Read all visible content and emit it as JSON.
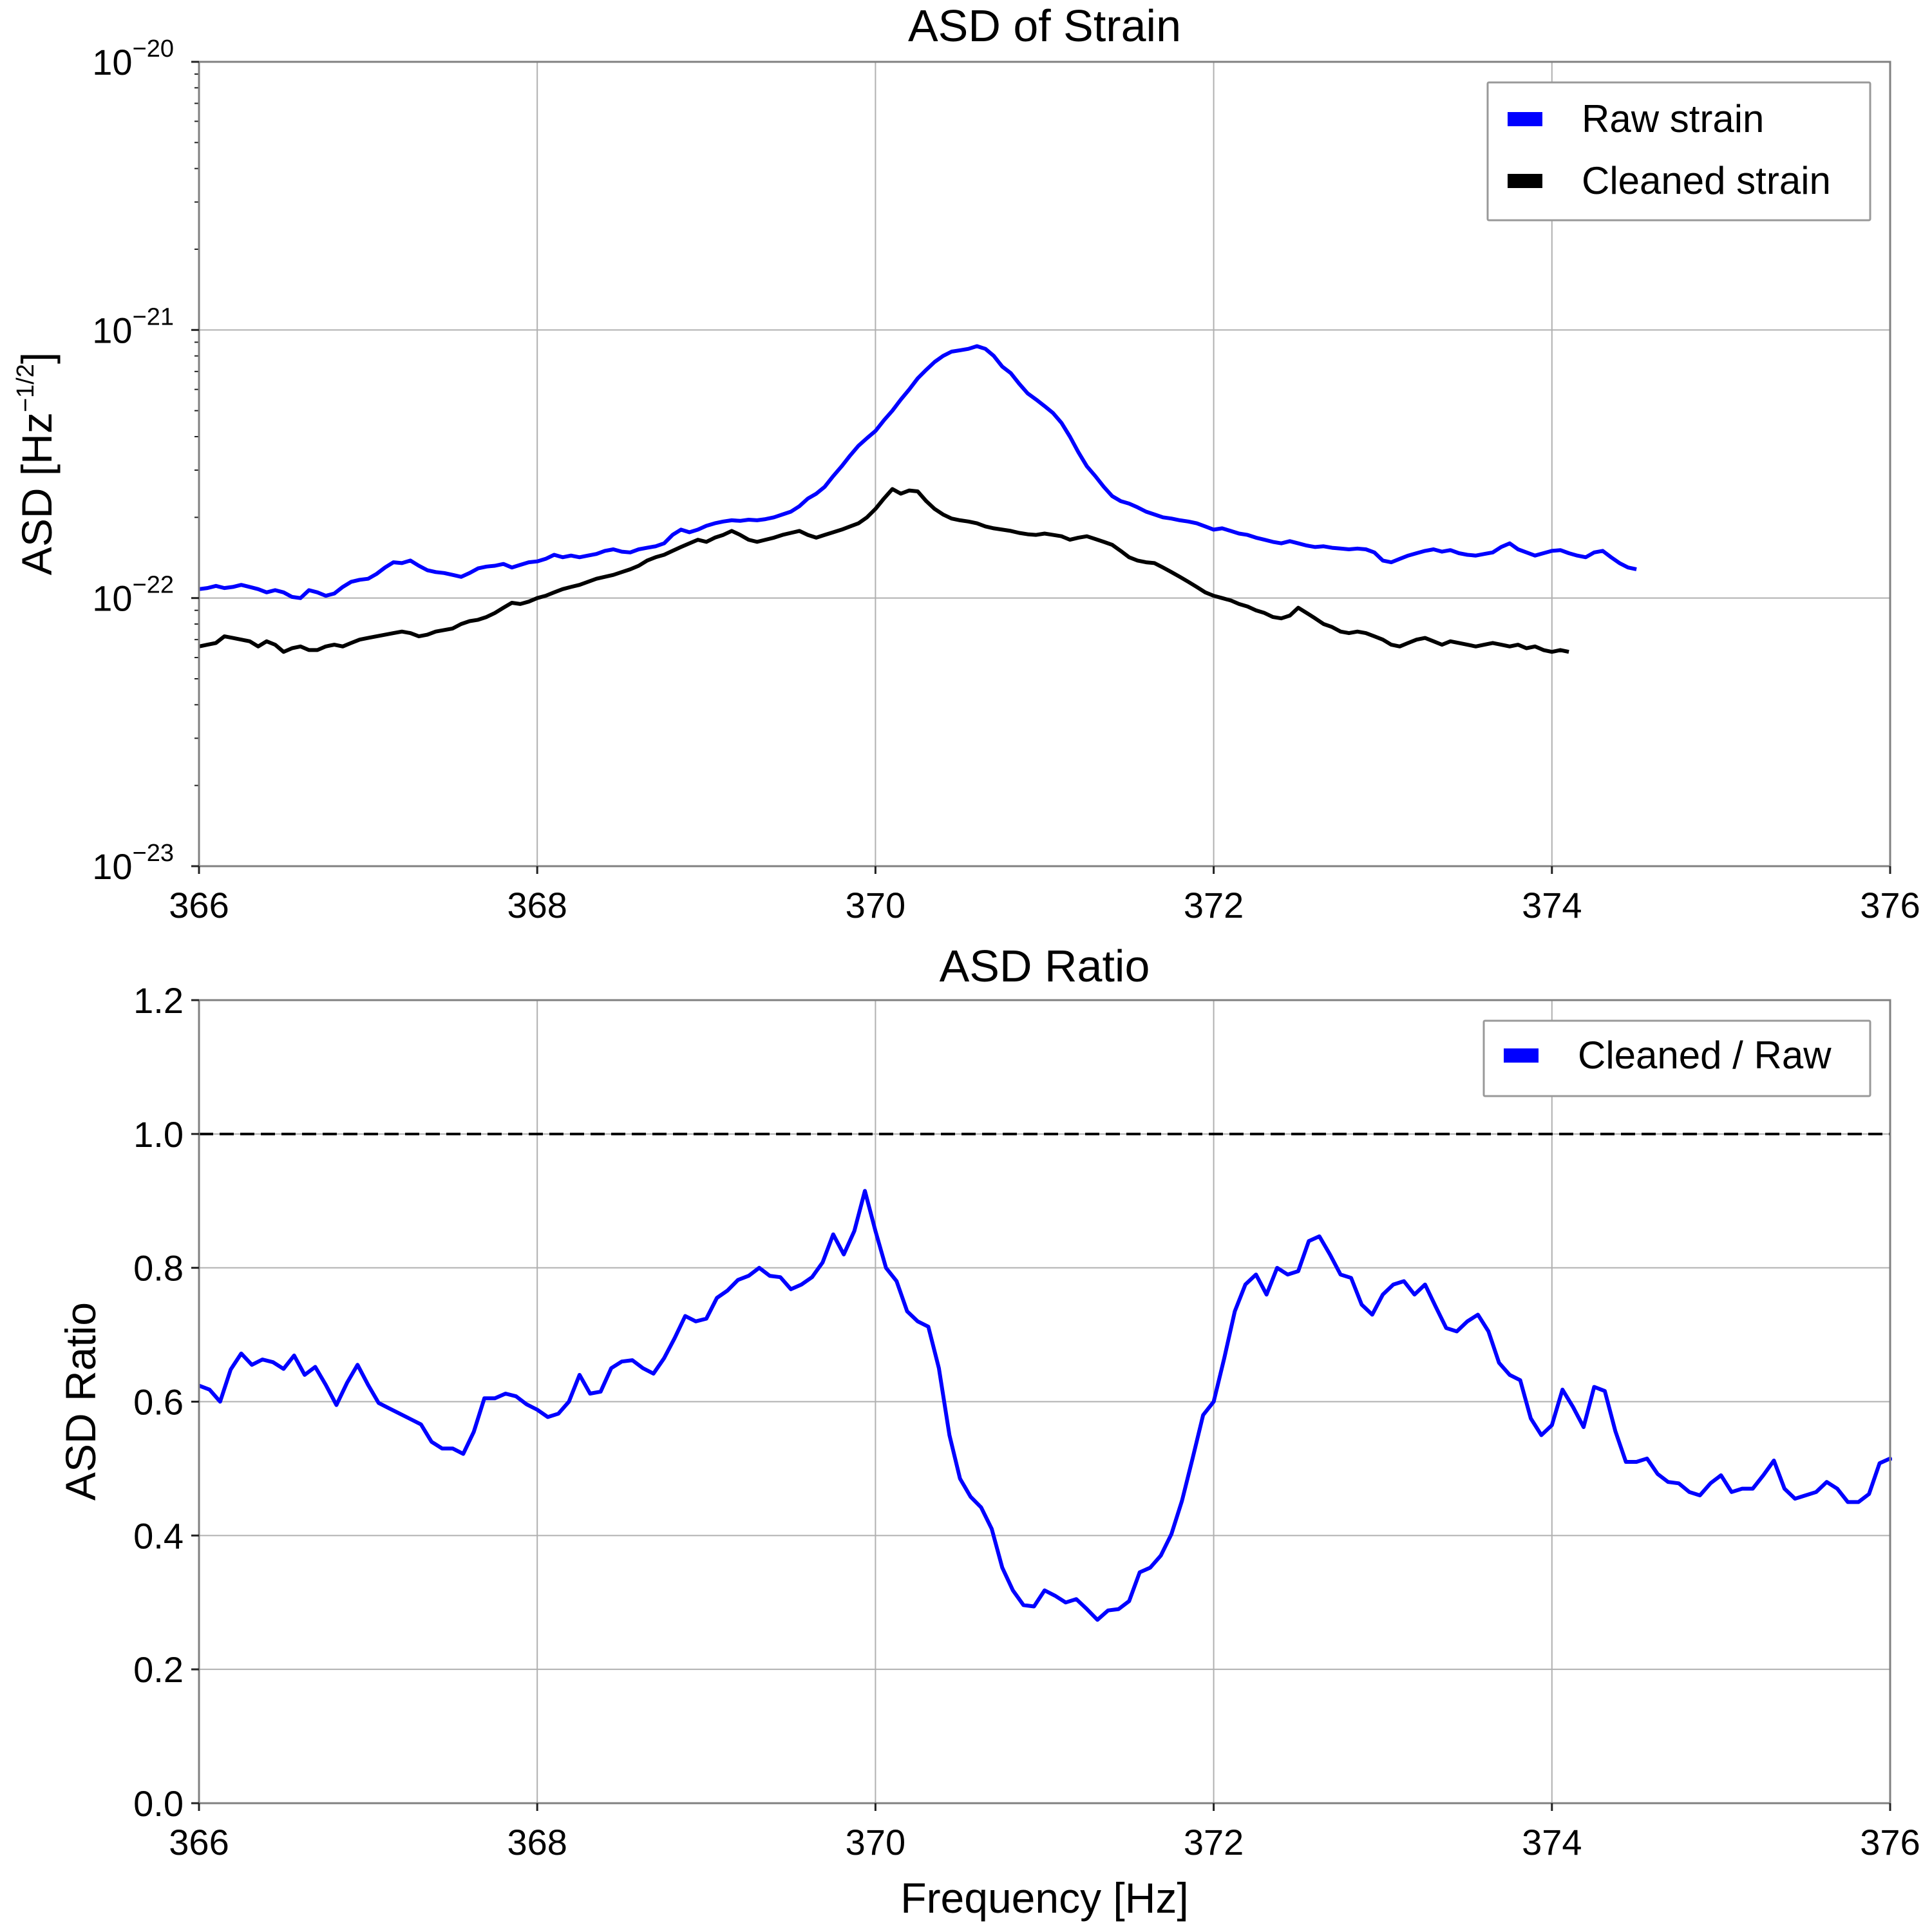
{
  "chart_data": [
    {
      "type": "line",
      "title": "ASD of Strain",
      "xlabel": "",
      "ylabel": "ASD [Hz^-1/2]",
      "ylabel_prefix": "ASD [Hz",
      "ylabel_exp": "−1/2",
      "ylabel_suffix": "]",
      "yscale": "log",
      "xlim": [
        366,
        376
      ],
      "ylim": [
        1e-23,
        1e-20
      ],
      "grid": true,
      "legend_position": "top-right",
      "x_ticks": [
        "366",
        "368",
        "370",
        "372",
        "374",
        "376"
      ],
      "y_ticks": [
        {
          "value": 1e-20,
          "base": "10",
          "exp": "−20"
        },
        {
          "value": 1e-21,
          "base": "10",
          "exp": "−21"
        },
        {
          "value": 1e-22,
          "base": "10",
          "exp": "−22"
        },
        {
          "value": 1e-23,
          "base": "10",
          "exp": "−23"
        }
      ],
      "x_start": 366,
      "x_step": 0.05,
      "series": [
        {
          "name": "Raw strain",
          "color": "#0000ff",
          "values": [
            1.08e-22,
            1.09e-22,
            1.11e-22,
            1.09e-22,
            1.1e-22,
            1.12e-22,
            1.1e-22,
            1.08e-22,
            1.05e-22,
            1.07e-22,
            1.05e-22,
            1.01e-22,
            1e-22,
            1.07e-22,
            1.05e-22,
            1.02e-22,
            1.04e-22,
            1.1e-22,
            1.15e-22,
            1.17e-22,
            1.18e-22,
            1.23e-22,
            1.3e-22,
            1.36e-22,
            1.35e-22,
            1.38e-22,
            1.32e-22,
            1.27e-22,
            1.25e-22,
            1.24e-22,
            1.22e-22,
            1.2e-22,
            1.24e-22,
            1.29e-22,
            1.31e-22,
            1.32e-22,
            1.34e-22,
            1.3e-22,
            1.33e-22,
            1.36e-22,
            1.37e-22,
            1.4e-22,
            1.45e-22,
            1.42e-22,
            1.44e-22,
            1.42e-22,
            1.44e-22,
            1.46e-22,
            1.5e-22,
            1.52e-22,
            1.49e-22,
            1.48e-22,
            1.52e-22,
            1.54e-22,
            1.56e-22,
            1.6e-22,
            1.72e-22,
            1.8e-22,
            1.76e-22,
            1.8e-22,
            1.86e-22,
            1.9e-22,
            1.93e-22,
            1.95e-22,
            1.94e-22,
            1.96e-22,
            1.95e-22,
            1.97e-22,
            2e-22,
            2.05e-22,
            2.1e-22,
            2.2e-22,
            2.35e-22,
            2.45e-22,
            2.6e-22,
            2.85e-22,
            3.1e-22,
            3.4e-22,
            3.7e-22,
            3.95e-22,
            4.2e-22,
            4.6e-22,
            5e-22,
            5.5e-22,
            6e-22,
            6.6e-22,
            7.1e-22,
            7.6e-22,
            8e-22,
            8.3e-22,
            8.4e-22,
            8.5e-22,
            8.7e-22,
            8.5e-22,
            8e-22,
            7.3e-22,
            6.9e-22,
            6.3e-22,
            5.8e-22,
            5.5e-22,
            5.2e-22,
            4.9e-22,
            4.5e-22,
            4e-22,
            3.5e-22,
            3.1e-22,
            2.85e-22,
            2.6e-22,
            2.4e-22,
            2.3e-22,
            2.25e-22,
            2.18e-22,
            2.1e-22,
            2.05e-22,
            2e-22,
            1.98e-22,
            1.95e-22,
            1.93e-22,
            1.9e-22,
            1.85e-22,
            1.8e-22,
            1.82e-22,
            1.78e-22,
            1.74e-22,
            1.72e-22,
            1.68e-22,
            1.65e-22,
            1.62e-22,
            1.6e-22,
            1.63e-22,
            1.6e-22,
            1.57e-22,
            1.55e-22,
            1.56e-22,
            1.54e-22,
            1.53e-22,
            1.52e-22,
            1.53e-22,
            1.52e-22,
            1.48e-22,
            1.38e-22,
            1.36e-22,
            1.4e-22,
            1.44e-22,
            1.47e-22,
            1.5e-22,
            1.52e-22,
            1.49e-22,
            1.51e-22,
            1.47e-22,
            1.45e-22,
            1.44e-22,
            1.46e-22,
            1.48e-22,
            1.55e-22,
            1.6e-22,
            1.52e-22,
            1.48e-22,
            1.44e-22,
            1.47e-22,
            1.5e-22,
            1.51e-22,
            1.47e-22,
            1.44e-22,
            1.42e-22,
            1.48e-22,
            1.5e-22,
            1.42e-22,
            1.35e-22,
            1.3e-22,
            1.28e-22
          ]
        },
        {
          "name": "Cleaned strain",
          "color": "#000000",
          "values": [
            6.6e-23,
            6.7e-23,
            6.8e-23,
            7.2e-23,
            7.1e-23,
            7e-23,
            6.9e-23,
            6.6e-23,
            6.9e-23,
            6.7e-23,
            6.3e-23,
            6.5e-23,
            6.6e-23,
            6.4e-23,
            6.4e-23,
            6.6e-23,
            6.7e-23,
            6.6e-23,
            6.8e-23,
            7e-23,
            7.1e-23,
            7.2e-23,
            7.3e-23,
            7.4e-23,
            7.5e-23,
            7.4e-23,
            7.2e-23,
            7.3e-23,
            7.5e-23,
            7.6e-23,
            7.7e-23,
            8e-23,
            8.2e-23,
            8.3e-23,
            8.5e-23,
            8.8e-23,
            9.2e-23,
            9.6e-23,
            9.5e-23,
            9.7e-23,
            1e-22,
            1.02e-22,
            1.05e-22,
            1.08e-22,
            1.1e-22,
            1.12e-22,
            1.15e-22,
            1.18e-22,
            1.2e-22,
            1.22e-22,
            1.25e-22,
            1.28e-22,
            1.32e-22,
            1.38e-22,
            1.42e-22,
            1.45e-22,
            1.5e-22,
            1.55e-22,
            1.6e-22,
            1.65e-22,
            1.62e-22,
            1.68e-22,
            1.72e-22,
            1.78e-22,
            1.72e-22,
            1.65e-22,
            1.62e-22,
            1.65e-22,
            1.68e-22,
            1.72e-22,
            1.75e-22,
            1.78e-22,
            1.72e-22,
            1.68e-22,
            1.72e-22,
            1.76e-22,
            1.8e-22,
            1.85e-22,
            1.9e-22,
            2e-22,
            2.15e-22,
            2.35e-22,
            2.55e-22,
            2.45e-22,
            2.52e-22,
            2.5e-22,
            2.3e-22,
            2.15e-22,
            2.05e-22,
            1.98e-22,
            1.95e-22,
            1.93e-22,
            1.9e-22,
            1.85e-22,
            1.82e-22,
            1.8e-22,
            1.78e-22,
            1.75e-22,
            1.73e-22,
            1.72e-22,
            1.74e-22,
            1.72e-22,
            1.7e-22,
            1.65e-22,
            1.68e-22,
            1.7e-22,
            1.66e-22,
            1.62e-22,
            1.58e-22,
            1.5e-22,
            1.42e-22,
            1.38e-22,
            1.36e-22,
            1.35e-22,
            1.3e-22,
            1.25e-22,
            1.2e-22,
            1.15e-22,
            1.1e-22,
            1.05e-22,
            1.02e-22,
            1e-22,
            9.8e-23,
            9.5e-23,
            9.3e-23,
            9e-23,
            8.8e-23,
            8.5e-23,
            8.4e-23,
            8.6e-23,
            9.2e-23,
            8.8e-23,
            8.4e-23,
            8e-23,
            7.8e-23,
            7.5e-23,
            7.4e-23,
            7.5e-23,
            7.4e-23,
            7.2e-23,
            7e-23,
            6.7e-23,
            6.6e-23,
            6.8e-23,
            7e-23,
            7.1e-23,
            6.9e-23,
            6.7e-23,
            6.9e-23,
            6.8e-23,
            6.7e-23,
            6.6e-23,
            6.7e-23,
            6.8e-23,
            6.7e-23,
            6.6e-23,
            6.7e-23,
            6.5e-23,
            6.6e-23,
            6.4e-23,
            6.3e-23,
            6.4e-23,
            6.3e-23
          ]
        }
      ]
    },
    {
      "type": "line",
      "title": "ASD Ratio",
      "xlabel": "Frequency [Hz]",
      "ylabel": "ASD Ratio",
      "yscale": "linear",
      "xlim": [
        366,
        376
      ],
      "ylim": [
        0.0,
        1.2
      ],
      "grid": true,
      "legend_position": "top-right",
      "x_ticks": [
        "366",
        "368",
        "370",
        "372",
        "374",
        "376"
      ],
      "y_ticks": [
        "0.0",
        "0.2",
        "0.4",
        "0.6",
        "0.8",
        "1.0",
        "1.2"
      ],
      "reference_line": {
        "y": 1.0,
        "style": "dashed",
        "color": "#000000"
      },
      "x_start": 366,
      "x_step": 0.0625,
      "series": [
        {
          "name": "Cleaned / Raw",
          "color": "#0000ff",
          "values": [
            0.624,
            0.618,
            0.6,
            0.648,
            0.672,
            0.655,
            0.663,
            0.659,
            0.649,
            0.669,
            0.64,
            0.652,
            0.625,
            0.595,
            0.628,
            0.655,
            0.625,
            0.598,
            0.59,
            0.582,
            0.574,
            0.566,
            0.54,
            0.53,
            0.53,
            0.522,
            0.555,
            0.605,
            0.605,
            0.612,
            0.608,
            0.596,
            0.588,
            0.577,
            0.582,
            0.6,
            0.64,
            0.612,
            0.615,
            0.65,
            0.66,
            0.662,
            0.65,
            0.642,
            0.665,
            0.695,
            0.728,
            0.72,
            0.724,
            0.755,
            0.766,
            0.782,
            0.788,
            0.8,
            0.788,
            0.786,
            0.768,
            0.775,
            0.786,
            0.808,
            0.85,
            0.82,
            0.855,
            0.915,
            0.855,
            0.8,
            0.78,
            0.735,
            0.72,
            0.712,
            0.65,
            0.55,
            0.485,
            0.458,
            0.442,
            0.41,
            0.352,
            0.318,
            0.296,
            0.294,
            0.318,
            0.31,
            0.3,
            0.305,
            0.29,
            0.274,
            0.288,
            0.29,
            0.302,
            0.345,
            0.352,
            0.37,
            0.402,
            0.452,
            0.515,
            0.58,
            0.6,
            0.665,
            0.735,
            0.775,
            0.79,
            0.76,
            0.8,
            0.79,
            0.795,
            0.84,
            0.847,
            0.82,
            0.79,
            0.785,
            0.745,
            0.73,
            0.76,
            0.775,
            0.78,
            0.76,
            0.775,
            0.742,
            0.71,
            0.705,
            0.72,
            0.73,
            0.705,
            0.658,
            0.64,
            0.632,
            0.575,
            0.55,
            0.565,
            0.618,
            0.592,
            0.562,
            0.622,
            0.616,
            0.556,
            0.51,
            0.51,
            0.515,
            0.492,
            0.48,
            0.478,
            0.465,
            0.46,
            0.478,
            0.49,
            0.465,
            0.47,
            0.47,
            0.49,
            0.512,
            0.47,
            0.455,
            0.46,
            0.465,
            0.48,
            0.47,
            0.45,
            0.45,
            0.462,
            0.508,
            0.515,
            0.512
          ]
        }
      ]
    }
  ]
}
